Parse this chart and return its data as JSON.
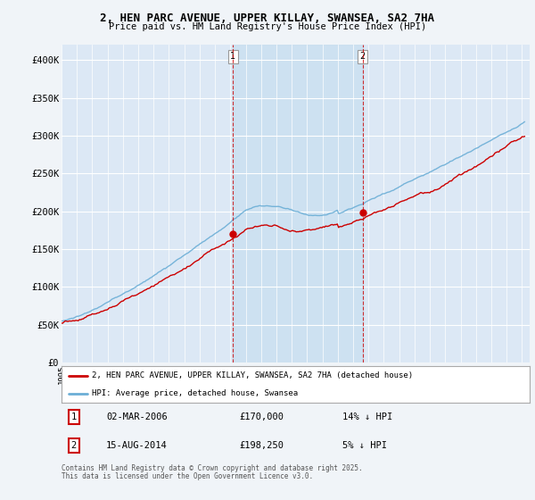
{
  "title": "2, HEN PARC AVENUE, UPPER KILLAY, SWANSEA, SA2 7HA",
  "subtitle": "Price paid vs. HM Land Registry's House Price Index (HPI)",
  "ylabel_ticks": [
    "£0",
    "£50K",
    "£100K",
    "£150K",
    "£200K",
    "£250K",
    "£300K",
    "£350K",
    "£400K"
  ],
  "ytick_values": [
    0,
    50000,
    100000,
    150000,
    200000,
    250000,
    300000,
    350000,
    400000
  ],
  "ylim": [
    0,
    420000
  ],
  "p1_t": 11.17,
  "p1_price": 170000,
  "p2_t": 19.62,
  "p2_price": 198250,
  "line_color_actual": "#cc0000",
  "line_color_hpi": "#6baed6",
  "bg_color": "#f0f4f8",
  "plot_bg": "#dce8f5",
  "highlight_bg": "#d0e4f5",
  "grid_color": "#ffffff",
  "dashed_color": "#cc0000",
  "footer": "Contains HM Land Registry data © Crown copyright and database right 2025.\nThis data is licensed under the Open Government Licence v3.0.",
  "legend_label_actual": "2, HEN PARC AVENUE, UPPER KILLAY, SWANSEA, SA2 7HA (detached house)",
  "legend_label_hpi": "HPI: Average price, detached house, Swansea"
}
